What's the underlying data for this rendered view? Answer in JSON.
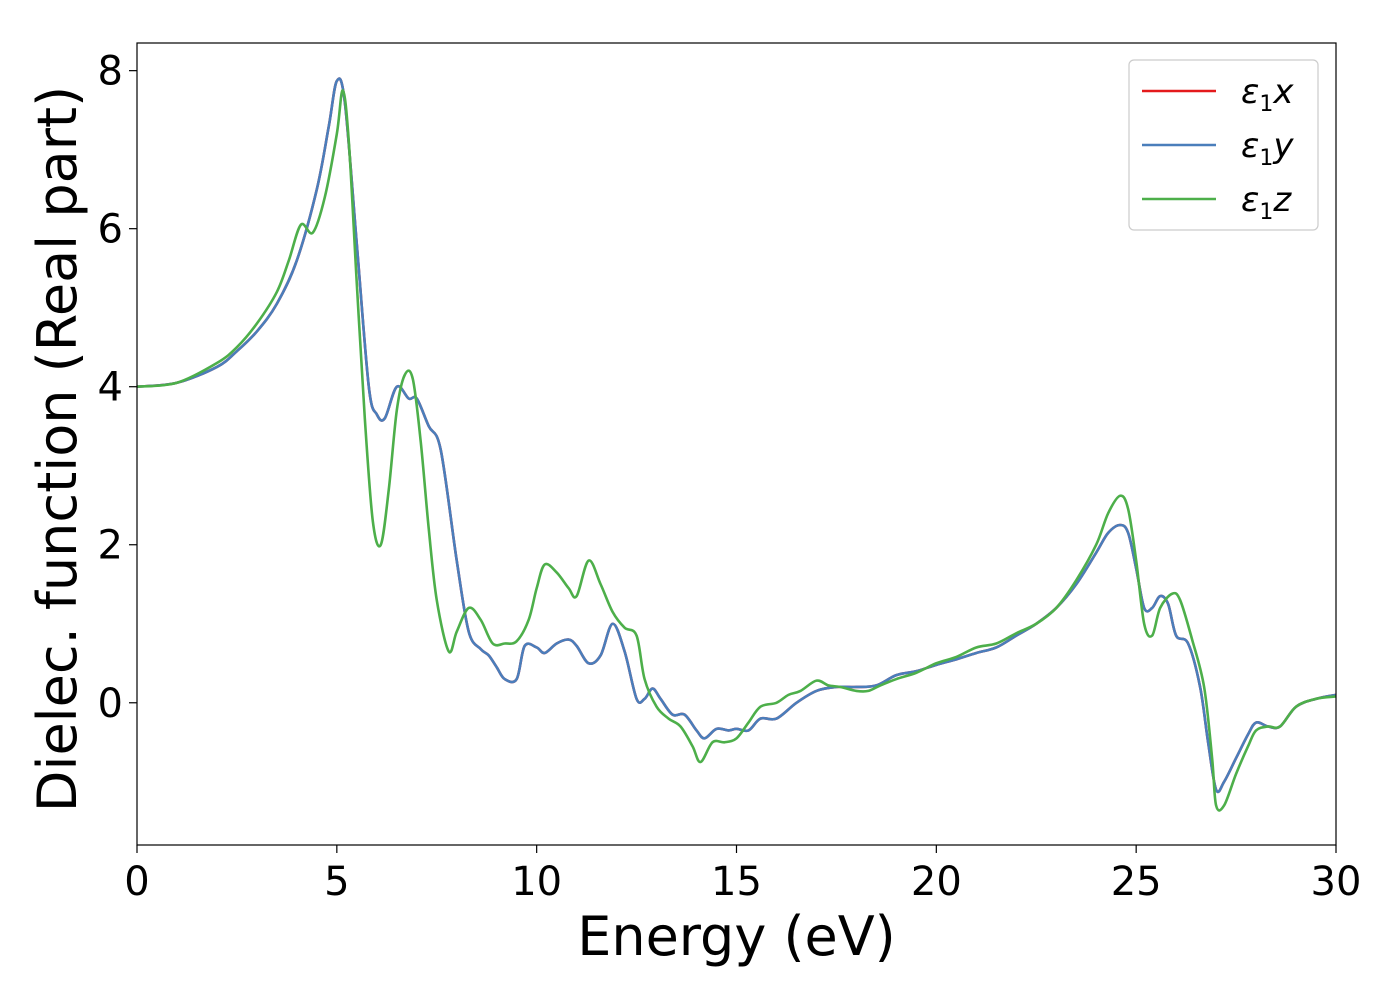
{
  "chart_data": {
    "type": "line",
    "title": "",
    "xlabel": "Energy (eV)",
    "ylabel": "Dielec. function (Real part)",
    "xlim": [
      0,
      30
    ],
    "ylim": [
      -1.8,
      8.35
    ],
    "xticks": [
      0,
      5,
      10,
      15,
      20,
      25,
      30
    ],
    "yticks": [
      0,
      2,
      4,
      6,
      8
    ],
    "grid": false,
    "legend_position": "top-right",
    "series": [
      {
        "name": "ε1x",
        "legend": {
          "base": "ε",
          "sub": "1",
          "suffix": "x"
        },
        "color": "#e41a1c",
        "x": [
          0,
          1,
          2,
          2.5,
          3,
          3.5,
          4,
          4.5,
          4.8,
          5.0,
          5.2,
          5.5,
          5.8,
          6.0,
          6.2,
          6.5,
          6.8,
          7.0,
          7.3,
          7.6,
          8.0,
          8.3,
          8.6,
          8.8,
          9.0,
          9.2,
          9.5,
          9.7,
          10.0,
          10.2,
          10.5,
          10.8,
          11.0,
          11.3,
          11.6,
          11.9,
          12.2,
          12.5,
          12.7,
          12.9,
          13.1,
          13.4,
          13.7,
          14.0,
          14.2,
          14.5,
          14.8,
          15.0,
          15.3,
          15.6,
          16.0,
          16.5,
          17.0,
          17.5,
          18.0,
          18.5,
          19.0,
          19.5,
          20.0,
          20.5,
          21.0,
          21.5,
          22.0,
          22.5,
          23.0,
          23.5,
          24.0,
          24.3,
          24.6,
          24.8,
          25.0,
          25.2,
          25.4,
          25.6,
          25.8,
          26.0,
          26.3,
          26.6,
          26.8,
          27.0,
          27.2,
          27.5,
          27.8,
          28.0,
          28.3,
          28.6,
          29.0,
          29.5,
          30.0
        ],
        "values": [
          4.0,
          4.05,
          4.25,
          4.45,
          4.7,
          5.05,
          5.6,
          6.5,
          7.3,
          7.87,
          7.6,
          5.8,
          4.0,
          3.65,
          3.6,
          4.0,
          3.85,
          3.85,
          3.5,
          3.2,
          1.8,
          0.9,
          0.68,
          0.6,
          0.45,
          0.3,
          0.3,
          0.72,
          0.7,
          0.63,
          0.75,
          0.8,
          0.72,
          0.5,
          0.6,
          1.0,
          0.65,
          0.05,
          0.05,
          0.18,
          0.05,
          -0.15,
          -0.15,
          -0.35,
          -0.45,
          -0.33,
          -0.35,
          -0.33,
          -0.35,
          -0.2,
          -0.2,
          0.0,
          0.15,
          0.2,
          0.2,
          0.22,
          0.35,
          0.4,
          0.48,
          0.55,
          0.63,
          0.7,
          0.85,
          1.0,
          1.2,
          1.5,
          1.9,
          2.15,
          2.25,
          2.15,
          1.7,
          1.2,
          1.2,
          1.35,
          1.25,
          0.85,
          0.75,
          0.2,
          -0.5,
          -1.1,
          -1.0,
          -0.7,
          -0.4,
          -0.25,
          -0.3,
          -0.3,
          -0.05,
          0.05,
          0.1
        ]
      },
      {
        "name": "ε1y",
        "legend": {
          "base": "ε",
          "sub": "1",
          "suffix": "y"
        },
        "color": "#4a7ebb",
        "x": [
          0,
          1,
          2,
          2.5,
          3,
          3.5,
          4,
          4.5,
          4.8,
          5.0,
          5.2,
          5.5,
          5.8,
          6.0,
          6.2,
          6.5,
          6.8,
          7.0,
          7.3,
          7.6,
          8.0,
          8.3,
          8.6,
          8.8,
          9.0,
          9.2,
          9.5,
          9.7,
          10.0,
          10.2,
          10.5,
          10.8,
          11.0,
          11.3,
          11.6,
          11.9,
          12.2,
          12.5,
          12.7,
          12.9,
          13.1,
          13.4,
          13.7,
          14.0,
          14.2,
          14.5,
          14.8,
          15.0,
          15.3,
          15.6,
          16.0,
          16.5,
          17.0,
          17.5,
          18.0,
          18.5,
          19.0,
          19.5,
          20.0,
          20.5,
          21.0,
          21.5,
          22.0,
          22.5,
          23.0,
          23.5,
          24.0,
          24.3,
          24.6,
          24.8,
          25.0,
          25.2,
          25.4,
          25.6,
          25.8,
          26.0,
          26.3,
          26.6,
          26.8,
          27.0,
          27.2,
          27.5,
          27.8,
          28.0,
          28.3,
          28.6,
          29.0,
          29.5,
          30.0
        ],
        "values": [
          4.0,
          4.05,
          4.25,
          4.45,
          4.7,
          5.05,
          5.6,
          6.5,
          7.3,
          7.87,
          7.6,
          5.8,
          4.0,
          3.65,
          3.6,
          4.0,
          3.85,
          3.85,
          3.5,
          3.2,
          1.8,
          0.9,
          0.68,
          0.6,
          0.45,
          0.3,
          0.3,
          0.72,
          0.7,
          0.63,
          0.75,
          0.8,
          0.72,
          0.5,
          0.6,
          1.0,
          0.65,
          0.05,
          0.05,
          0.18,
          0.05,
          -0.15,
          -0.15,
          -0.35,
          -0.45,
          -0.33,
          -0.35,
          -0.33,
          -0.35,
          -0.2,
          -0.2,
          0.0,
          0.15,
          0.2,
          0.2,
          0.22,
          0.35,
          0.4,
          0.48,
          0.55,
          0.63,
          0.7,
          0.85,
          1.0,
          1.2,
          1.5,
          1.9,
          2.15,
          2.25,
          2.15,
          1.7,
          1.2,
          1.2,
          1.35,
          1.25,
          0.85,
          0.75,
          0.2,
          -0.5,
          -1.1,
          -1.0,
          -0.7,
          -0.4,
          -0.25,
          -0.3,
          -0.3,
          -0.05,
          0.05,
          0.1
        ]
      },
      {
        "name": "ε1z",
        "legend": {
          "base": "ε",
          "sub": "1",
          "suffix": "z"
        },
        "color": "#4daf4a",
        "x": [
          0,
          1,
          2,
          2.5,
          3,
          3.5,
          3.8,
          4.1,
          4.4,
          4.7,
          5.0,
          5.15,
          5.3,
          5.5,
          5.7,
          5.9,
          6.1,
          6.3,
          6.5,
          6.7,
          6.9,
          7.1,
          7.3,
          7.5,
          7.8,
          8.0,
          8.3,
          8.6,
          8.9,
          9.2,
          9.5,
          9.8,
          10.0,
          10.2,
          10.5,
          10.8,
          11.0,
          11.3,
          11.6,
          11.9,
          12.2,
          12.5,
          12.7,
          13.0,
          13.3,
          13.6,
          13.9,
          14.1,
          14.4,
          14.7,
          15.0,
          15.3,
          15.6,
          16.0,
          16.3,
          16.6,
          17.0,
          17.3,
          17.6,
          18.0,
          18.3,
          18.6,
          19.0,
          19.5,
          20.0,
          20.5,
          21.0,
          21.5,
          22.0,
          22.5,
          23.0,
          23.5,
          24.0,
          24.3,
          24.6,
          24.8,
          25.0,
          25.2,
          25.4,
          25.6,
          25.9,
          26.1,
          26.4,
          26.7,
          26.9,
          27.0,
          27.2,
          27.5,
          27.8,
          28.0,
          28.3,
          28.6,
          29.0,
          29.5,
          30.0
        ],
        "values": [
          4.0,
          4.05,
          4.3,
          4.5,
          4.8,
          5.2,
          5.6,
          6.05,
          5.95,
          6.4,
          7.2,
          7.75,
          7.1,
          5.3,
          3.6,
          2.3,
          2.0,
          2.7,
          3.7,
          4.15,
          4.1,
          3.3,
          2.2,
          1.3,
          0.65,
          0.9,
          1.2,
          1.05,
          0.75,
          0.75,
          0.78,
          1.05,
          1.45,
          1.75,
          1.65,
          1.45,
          1.35,
          1.8,
          1.5,
          1.15,
          0.95,
          0.85,
          0.3,
          -0.05,
          -0.2,
          -0.3,
          -0.55,
          -0.75,
          -0.5,
          -0.5,
          -0.45,
          -0.25,
          -0.05,
          0.0,
          0.1,
          0.15,
          0.28,
          0.22,
          0.2,
          0.15,
          0.15,
          0.22,
          0.3,
          0.38,
          0.5,
          0.58,
          0.7,
          0.75,
          0.88,
          1.0,
          1.2,
          1.55,
          2.0,
          2.4,
          2.62,
          2.45,
          1.8,
          1.0,
          0.85,
          1.2,
          1.38,
          1.3,
          0.8,
          0.2,
          -0.7,
          -1.3,
          -1.3,
          -0.9,
          -0.55,
          -0.35,
          -0.3,
          -0.3,
          -0.05,
          0.05,
          0.08
        ]
      }
    ]
  }
}
